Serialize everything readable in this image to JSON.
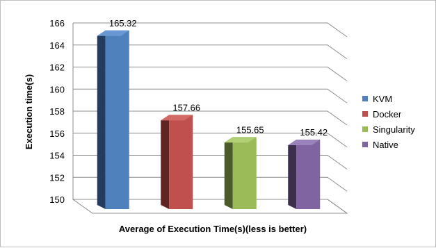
{
  "chart_data": {
    "type": "bar",
    "categories": [
      "KVM",
      "Docker",
      "Singularity",
      "Native"
    ],
    "values": [
      165.32,
      157.66,
      155.65,
      155.42
    ],
    "data_labels": [
      "165.32",
      "157.66",
      "155.65",
      "155.42"
    ],
    "xlabel": "Average of Execution Time(s)(less is better)",
    "ylabel": "Execution time(s)",
    "ylim": [
      150,
      166
    ],
    "yticks": [
      "150",
      "152",
      "154",
      "156",
      "158",
      "160",
      "162",
      "164",
      "166"
    ],
    "grid": true,
    "three_d": true,
    "legend_position": "right",
    "colors": [
      "#4f81bd",
      "#c0504d",
      "#9bbb59",
      "#8064a2"
    ],
    "dark_colors": [
      "#253c5c",
      "#5e2524",
      "#4a5a2a",
      "#3c2f4e"
    ],
    "top_colors": [
      "#6a98d2",
      "#d46a66",
      "#b3cf75",
      "#9a82ba"
    ]
  }
}
